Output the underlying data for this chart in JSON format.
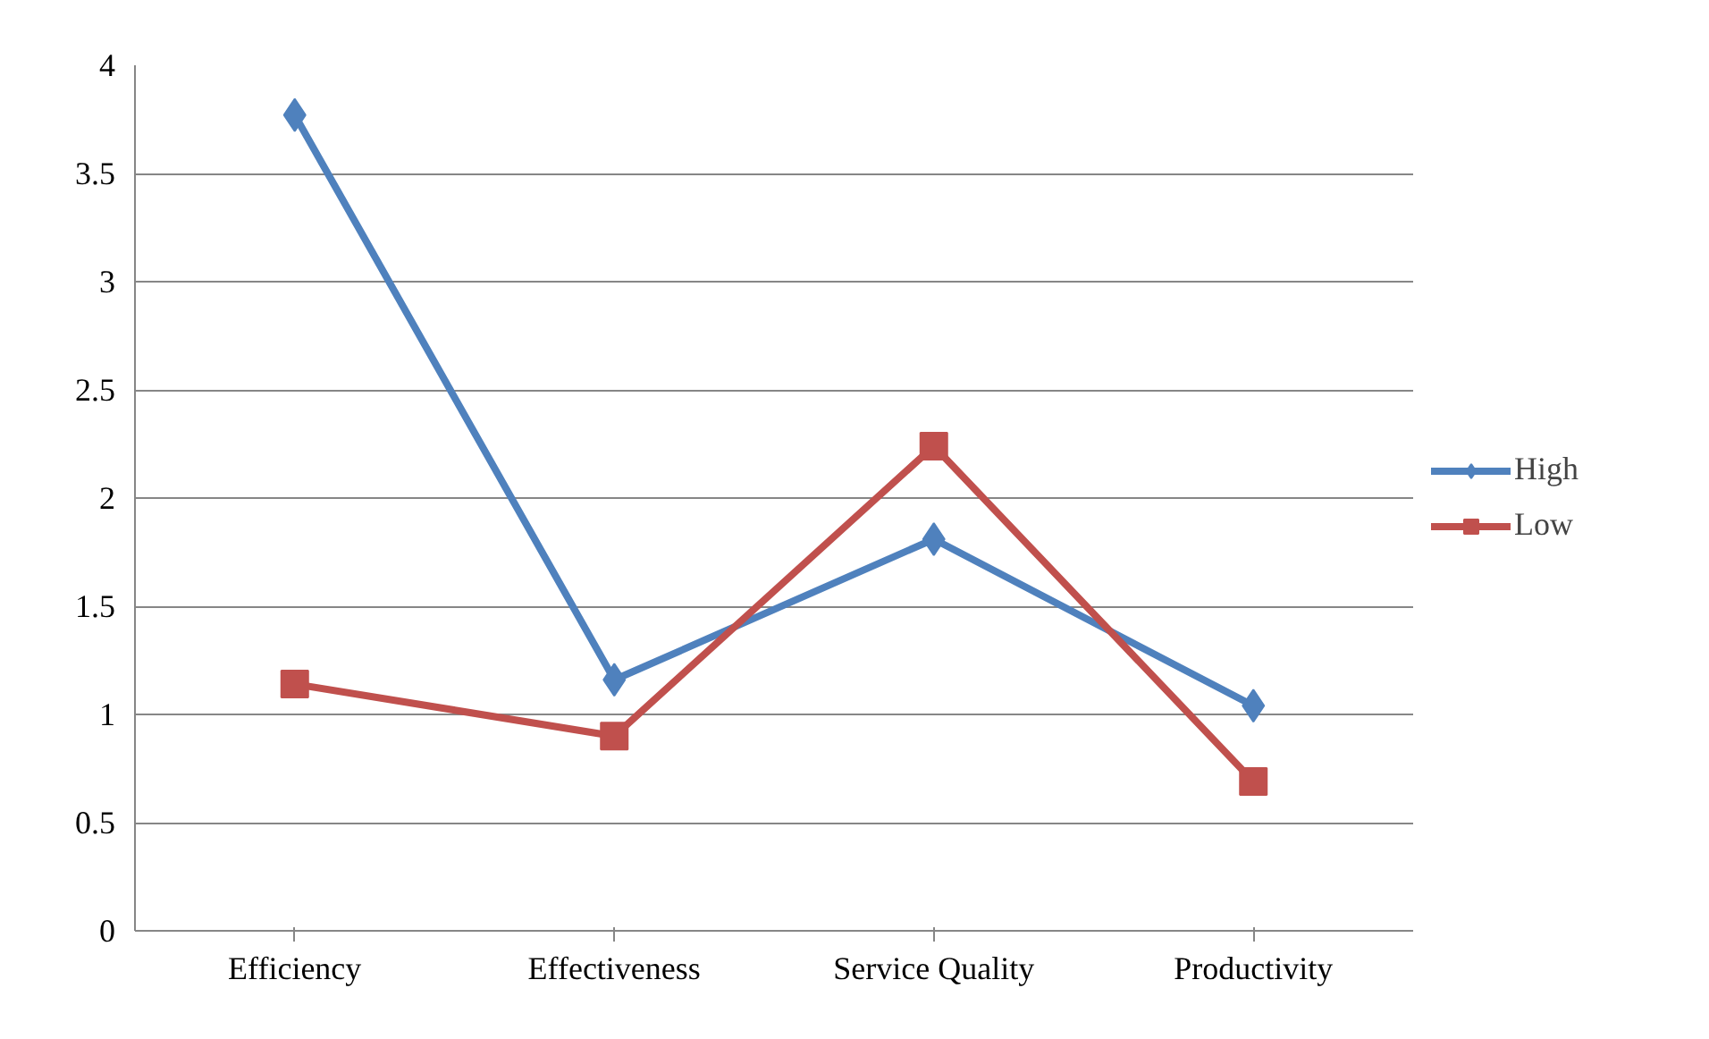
{
  "chart_data": {
    "type": "line",
    "categories": [
      "Efficiency",
      "Effectiveness",
      "Service Quality",
      "Productivity"
    ],
    "series": [
      {
        "name": "High",
        "color": "#4f81bd",
        "marker": "diamond",
        "values": [
          3.77,
          1.16,
          1.81,
          1.04
        ]
      },
      {
        "name": "Low",
        "color": "#c0504d",
        "marker": "square",
        "values": [
          1.14,
          0.9,
          2.24,
          0.69
        ]
      }
    ],
    "ylim": [
      0,
      4
    ],
    "yticks": [
      0,
      {
        "value": 0.5,
        "label": "0.5"
      },
      1,
      {
        "value": 1.5,
        "label": "1.5"
      },
      2,
      {
        "value": 2.5,
        "label": "2.5"
      },
      3,
      {
        "value": 3.5,
        "label": "3.5"
      },
      4
    ],
    "grid": "y",
    "legend": "right",
    "line_style": "solid"
  }
}
